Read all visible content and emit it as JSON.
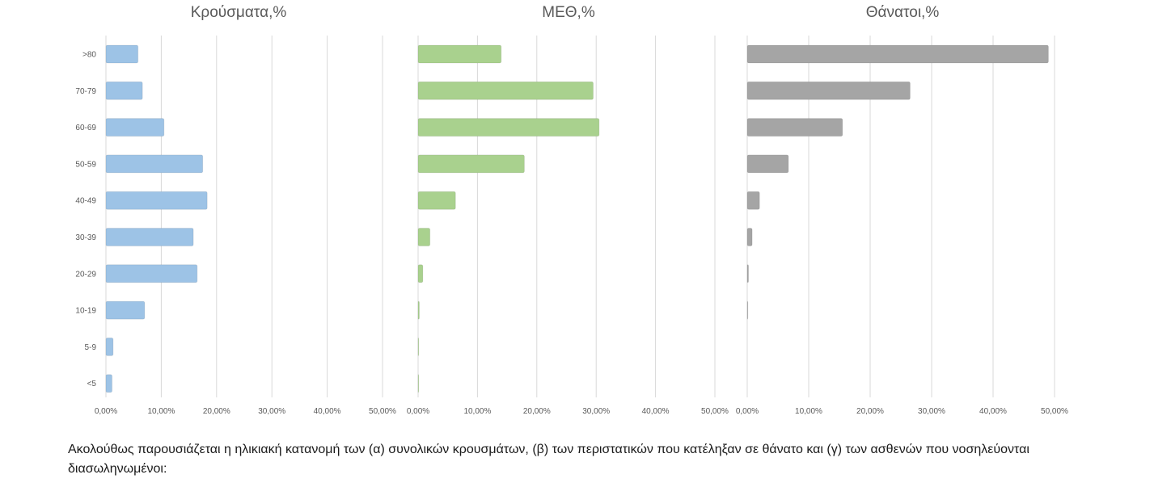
{
  "chart_data": [
    {
      "type": "bar",
      "orientation": "horizontal",
      "title": "Κρούσματα,%",
      "categories": [
        ">80",
        "70-79",
        "60-69",
        "50-59",
        "40-49",
        "30-39",
        "20-29",
        "10-19",
        "5-9",
        "<5"
      ],
      "values": [
        5.8,
        6.6,
        10.5,
        17.5,
        18.3,
        15.8,
        16.5,
        7.0,
        1.3,
        1.1
      ],
      "color": "#9dc3e6",
      "xlim": [
        0,
        50
      ],
      "x_ticks": [
        "0,00%",
        "10,00%",
        "20,00%",
        "30,00%",
        "40,00%",
        "50,00%"
      ],
      "grid": true
    },
    {
      "type": "bar",
      "orientation": "horizontal",
      "title": "ΜΕΘ,%",
      "categories": [
        ">80",
        "70-79",
        "60-69",
        "50-59",
        "40-49",
        "30-39",
        "20-29",
        "10-19",
        "5-9",
        "<5"
      ],
      "values": [
        14.0,
        29.5,
        30.5,
        17.9,
        6.3,
        2.0,
        0.8,
        0.2,
        0.1,
        0.1
      ],
      "color": "#a9d18e",
      "xlim": [
        0,
        50
      ],
      "x_ticks": [
        "0,00%",
        "10,00%",
        "20,00%",
        "30,00%",
        "40,00%",
        "50,00%"
      ],
      "grid": true
    },
    {
      "type": "bar",
      "orientation": "horizontal",
      "title": "Θάνατοι,%",
      "categories": [
        ">80",
        "70-79",
        "60-69",
        "50-59",
        "40-49",
        "30-39",
        "20-29",
        "10-19",
        "5-9",
        "<5"
      ],
      "values": [
        49.0,
        26.5,
        15.5,
        6.7,
        2.0,
        0.8,
        0.2,
        0.1,
        0,
        0
      ],
      "color": "#a5a5a5",
      "xlim": [
        0,
        50
      ],
      "x_ticks": [
        "0,00%",
        "10,00%",
        "20,00%",
        "30,00%",
        "40,00%",
        "50,00%"
      ],
      "grid": true
    }
  ],
  "caption": "Ακολούθως παρουσιάζεται η ηλικιακή κατανομή των (α) συνολικών κρουσμάτων, (β) των περιστατικών που κατέληξαν σε θάνατο και (γ) των ασθενών που νοσηλεύονται διασωληνωμένοι:"
}
